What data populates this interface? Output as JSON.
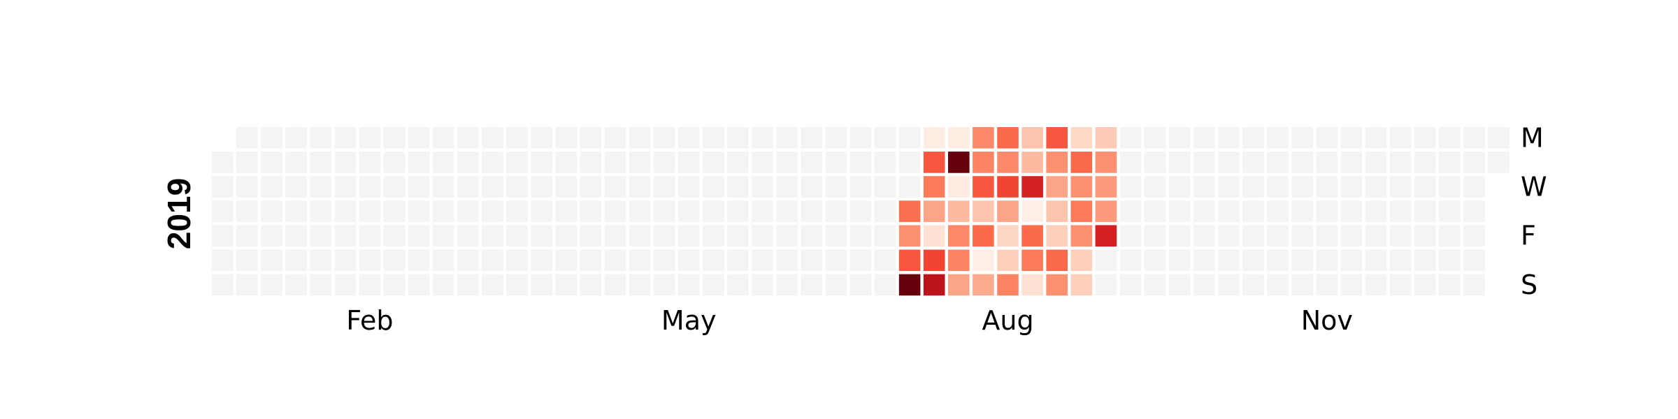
{
  "chart_data": {
    "type": "heatmap",
    "year": "2019",
    "month_labels": [
      {
        "label": "Feb",
        "week": 6
      },
      {
        "label": "May",
        "week": 19
      },
      {
        "label": "Aug",
        "week": 32
      },
      {
        "label": "Nov",
        "week": 45
      }
    ],
    "day_labels": [
      {
        "label": "M",
        "row": 0
      },
      {
        "label": "W",
        "row": 2
      },
      {
        "label": "F",
        "row": 4
      },
      {
        "label": "S",
        "row": 6
      }
    ],
    "grid": {
      "weeks": 53,
      "first_day_row": 1,
      "days": 365
    },
    "scale": "Reds",
    "empty_color": "#f4f4f4",
    "value_range": [
      0,
      1
    ],
    "active_weeks": [
      {
        "week": 28,
        "values": [
          null,
          null,
          null,
          0.48,
          0.38,
          0.55,
          1.0
        ]
      },
      {
        "week": 29,
        "values": [
          0.05,
          0.55,
          0.45,
          0.32,
          0.12,
          0.6,
          0.8
        ]
      },
      {
        "week": 30,
        "values": [
          0.05,
          1.0,
          0.06,
          0.25,
          0.4,
          0.42,
          0.32
        ]
      },
      {
        "week": 31,
        "values": [
          0.4,
          0.42,
          0.55,
          0.22,
          0.5,
          0.04,
          0.3
        ]
      },
      {
        "week": 32,
        "values": [
          0.5,
          0.4,
          0.6,
          0.32,
          0.16,
          0.18,
          0.42
        ]
      },
      {
        "week": 33,
        "values": [
          0.22,
          0.25,
          0.72,
          0.04,
          0.5,
          0.45,
          0.12
        ]
      },
      {
        "week": 34,
        "values": [
          0.55,
          0.38,
          0.32,
          0.22,
          0.18,
          0.5,
          0.38
        ]
      },
      {
        "week": 35,
        "values": [
          0.15,
          0.5,
          0.38,
          0.45,
          0.38,
          0.18,
          0.18
        ]
      },
      {
        "week": 36,
        "values": [
          0.2,
          0.38,
          0.35,
          0.35,
          0.72,
          null,
          null
        ]
      }
    ]
  }
}
